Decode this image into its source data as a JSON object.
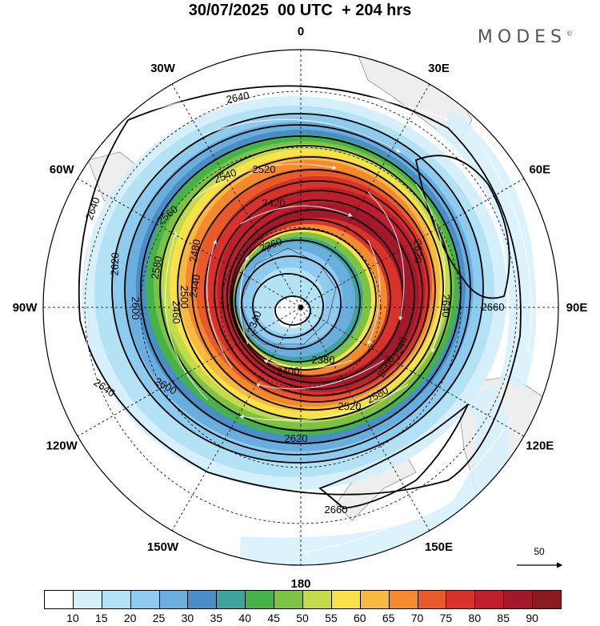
{
  "title": "30/07/2025  00 UTC  + 204 hrs",
  "brand": "MODES",
  "brand_mark": "©",
  "longitude_labels": [
    {
      "text": "0",
      "lon": 0
    },
    {
      "text": "30E",
      "lon": 30
    },
    {
      "text": "60E",
      "lon": 60
    },
    {
      "text": "90E",
      "lon": 90
    },
    {
      "text": "120E",
      "lon": 120
    },
    {
      "text": "150E",
      "lon": 150
    },
    {
      "text": "180",
      "lon": 180
    },
    {
      "text": "150W",
      "lon": -150
    },
    {
      "text": "120W",
      "lon": -120
    },
    {
      "text": "90W",
      "lon": -90
    },
    {
      "text": "60W",
      "lon": -60
    },
    {
      "text": "30W",
      "lon": -30
    }
  ],
  "contour_labels": [
    "2640",
    "2640",
    "2640",
    "2620",
    "2620",
    "2600",
    "2600",
    "2580",
    "2560",
    "2540",
    "2520",
    "2500",
    "2480",
    "2460",
    "2440",
    "2420",
    "2400",
    "2380",
    "2360",
    "2340",
    "2620",
    "2640",
    "2660",
    "2660",
    "2580",
    "2560",
    "2540",
    "2520"
  ],
  "vector_key": {
    "value": "50"
  },
  "colorbar": {
    "ticks": [
      "10",
      "15",
      "20",
      "25",
      "30",
      "35",
      "40",
      "45",
      "50",
      "55",
      "60",
      "65",
      "70",
      "75",
      "80",
      "85",
      "90"
    ],
    "colors": [
      "#ffffff",
      "#d6f0fb",
      "#b3e2f5",
      "#8fcbee",
      "#6aaede",
      "#4a8ec6",
      "#3fa59a",
      "#46b34a",
      "#7dc242",
      "#c3da4a",
      "#f7e24a",
      "#f8b942",
      "#f38b2e",
      "#e95a2b",
      "#d8322a",
      "#bf1f2c",
      "#a3192a",
      "#8b1a1e"
    ]
  }
}
